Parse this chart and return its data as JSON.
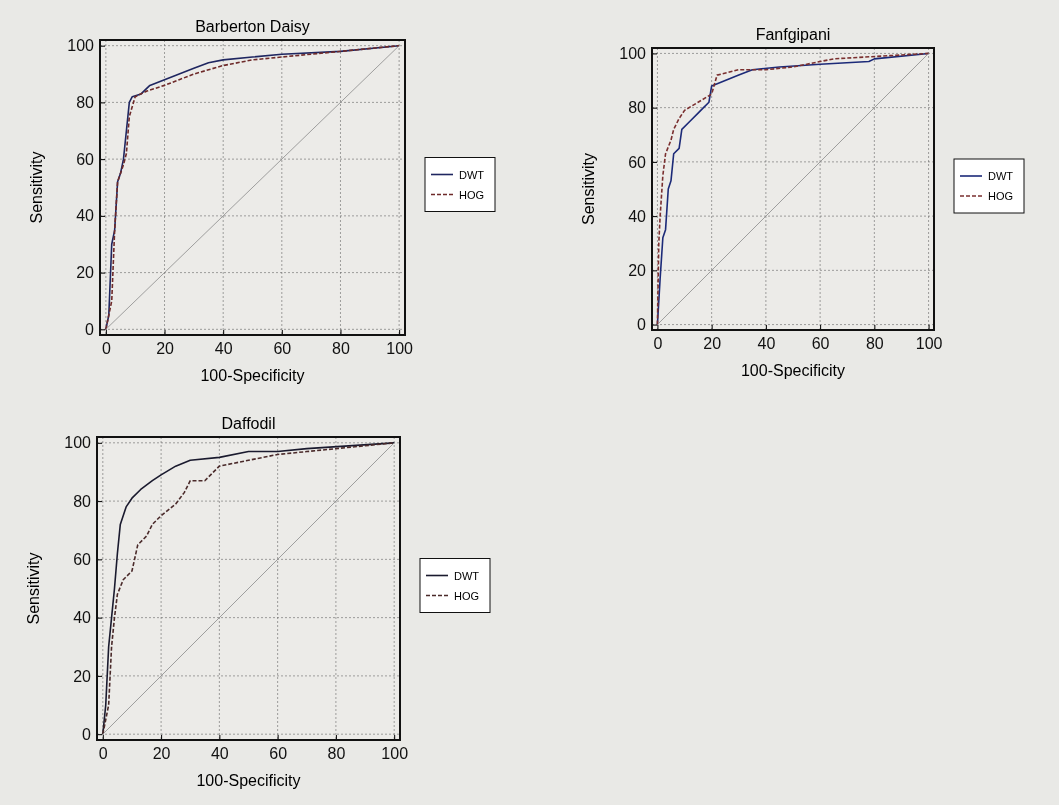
{
  "chart_data": [
    {
      "type": "line",
      "title": "Barberton Daisy",
      "xlabel": "100-Specificity",
      "ylabel": "Sensitivity",
      "xlim": [
        -2,
        102
      ],
      "ylim": [
        -2,
        102
      ],
      "xticks": [
        0,
        20,
        40,
        60,
        80,
        100
      ],
      "yticks": [
        0,
        20,
        40,
        60,
        80,
        100
      ],
      "grid": true,
      "legend": "right",
      "marker": "none",
      "series": [
        {
          "name": "DWT",
          "color": "#1f2660",
          "line_style": "solid",
          "x": [
            0,
            1,
            2,
            3,
            4,
            5,
            6,
            7,
            8,
            9,
            12,
            15,
            20,
            25,
            30,
            35,
            40,
            50,
            60,
            80,
            100
          ],
          "values": [
            0,
            5,
            30,
            35,
            52,
            55,
            60,
            70,
            80,
            82,
            83,
            86,
            88,
            90,
            92,
            94,
            95,
            96,
            97,
            98,
            100
          ]
        },
        {
          "name": "HOG",
          "color": "#6e2a2a",
          "line_style": "dashed",
          "x": [
            0,
            2,
            3,
            4,
            6,
            7,
            8,
            10,
            14,
            20,
            25,
            30,
            40,
            50,
            60,
            70,
            100
          ],
          "values": [
            0,
            10,
            35,
            52,
            58,
            62,
            75,
            82,
            84,
            86,
            88,
            90,
            93,
            95,
            96,
            97,
            100
          ]
        },
        {
          "type": "line",
          "color": "#8a8a8a",
          "line_style": "solid",
          "x": [
            0,
            100
          ],
          "values": [
            0,
            100
          ]
        }
      ]
    },
    {
      "type": "line",
      "title": "Fanfgipani",
      "xlabel": "100-Specificity",
      "ylabel": "Sensitivity",
      "xlim": [
        -2,
        102
      ],
      "ylim": [
        -2,
        102
      ],
      "xticks": [
        0,
        20,
        40,
        60,
        80,
        100
      ],
      "yticks": [
        0,
        20,
        40,
        60,
        80,
        100
      ],
      "grid": true,
      "legend": "right",
      "marker": "none",
      "series": [
        {
          "name": "DWT",
          "color": "#1c2a78",
          "line_style": "solid",
          "x": [
            0,
            1,
            2,
            3,
            4,
            5,
            6,
            8,
            9,
            12,
            15,
            17,
            19,
            20,
            25,
            30,
            35,
            45,
            60,
            78,
            80,
            100
          ],
          "values": [
            0,
            17,
            32,
            35,
            50,
            53,
            63,
            65,
            72,
            75,
            78,
            80,
            82,
            88,
            90,
            92,
            94,
            95,
            96,
            97,
            98,
            100
          ]
        },
        {
          "name": "HOG",
          "color": "#7a2f2f",
          "line_style": "dashed",
          "x": [
            0,
            0.5,
            1,
            2,
            3,
            5,
            6,
            8,
            10,
            15,
            20,
            22,
            30,
            40,
            50,
            60,
            65,
            100
          ],
          "values": [
            0,
            30,
            40,
            55,
            63,
            68,
            72,
            76,
            79,
            82,
            85,
            92,
            94,
            94,
            95,
            97,
            98,
            100
          ]
        },
        {
          "type": "line",
          "color": "#8a8a8a",
          "line_style": "solid",
          "x": [
            0,
            100
          ],
          "values": [
            0,
            100
          ]
        }
      ]
    },
    {
      "type": "line",
      "title": "Daffodil",
      "xlabel": "100-Specificity",
      "ylabel": "Sensitivity",
      "xlim": [
        -2,
        102
      ],
      "ylim": [
        -2,
        102
      ],
      "xticks": [
        0,
        20,
        40,
        60,
        80,
        100
      ],
      "yticks": [
        0,
        20,
        40,
        60,
        80,
        100
      ],
      "grid": true,
      "legend": "right",
      "marker": "none",
      "series": [
        {
          "name": "DWT",
          "color": "#1a1a2e",
          "line_style": "solid",
          "x": [
            0,
            1,
            2,
            3,
            4,
            5,
            6,
            8,
            10,
            13,
            17,
            20,
            25,
            30,
            40,
            50,
            60,
            70,
            100
          ],
          "values": [
            0,
            10,
            30,
            40,
            50,
            62,
            72,
            78,
            81,
            84,
            87,
            89,
            92,
            94,
            95,
            97,
            97,
            98,
            100
          ]
        },
        {
          "name": "HOG",
          "color": "#4a2a2a",
          "line_style": "dashed",
          "x": [
            0,
            2,
            3,
            4,
            5,
            7,
            10,
            12,
            15,
            17,
            20,
            25,
            28,
            30,
            35,
            40,
            50,
            60,
            70,
            100
          ],
          "values": [
            0,
            10,
            30,
            40,
            48,
            53,
            56,
            65,
            68,
            72,
            75,
            79,
            83,
            87,
            87,
            92,
            94,
            96,
            97,
            100
          ]
        },
        {
          "type": "line",
          "color": "#8a8a8a",
          "line_style": "solid",
          "x": [
            0,
            100
          ],
          "values": [
            0,
            100
          ]
        }
      ]
    }
  ]
}
